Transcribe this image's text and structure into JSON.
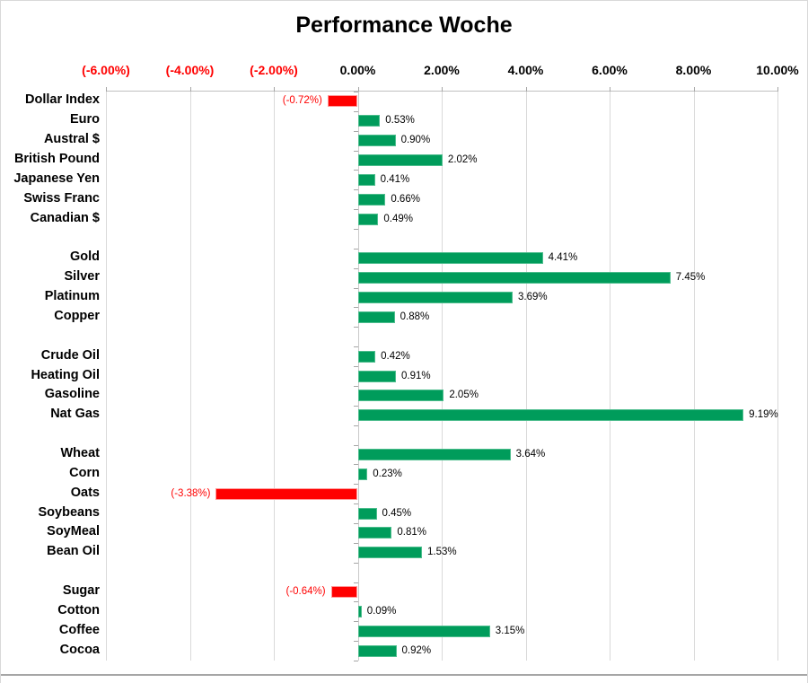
{
  "title": "Performance Woche",
  "chart_data": {
    "type": "bar",
    "orientation": "horizontal",
    "title": "Performance Woche",
    "value_labels_shown": true,
    "grid": true,
    "x_axis": {
      "min": -6,
      "max": 10,
      "step": 2,
      "unit": "%",
      "tick_labels": [
        "(-6.00%)",
        "(-4.00%)",
        "(-2.00%)",
        "0.00%",
        "2.00%",
        "4.00%",
        "6.00%",
        "8.00%",
        "10.00%"
      ],
      "tick_label_negative_indices": [
        0,
        1,
        2
      ]
    },
    "rows": [
      {
        "label": "Dollar Index",
        "value": -0.72,
        "display": "(-0.72%)"
      },
      {
        "label": "Euro",
        "value": 0.53,
        "display": "0.53%"
      },
      {
        "label": "Austral $",
        "value": 0.9,
        "display": "0.90%"
      },
      {
        "label": "British Pound",
        "value": 2.02,
        "display": "2.02%"
      },
      {
        "label": "Japanese Yen",
        "value": 0.41,
        "display": "0.41%"
      },
      {
        "label": "Swiss Franc",
        "value": 0.66,
        "display": "0.66%"
      },
      {
        "label": "Canadian $",
        "value": 0.49,
        "display": "0.49%"
      },
      {
        "label": "",
        "value": null,
        "display": ""
      },
      {
        "label": "Gold",
        "value": 4.41,
        "display": "4.41%"
      },
      {
        "label": "Silver",
        "value": 7.45,
        "display": "7.45%"
      },
      {
        "label": "Platinum",
        "value": 3.69,
        "display": "3.69%"
      },
      {
        "label": "Copper",
        "value": 0.88,
        "display": "0.88%"
      },
      {
        "label": "",
        "value": null,
        "display": ""
      },
      {
        "label": "Crude Oil",
        "value": 0.42,
        "display": "0.42%"
      },
      {
        "label": "Heating Oil",
        "value": 0.91,
        "display": "0.91%"
      },
      {
        "label": "Gasoline",
        "value": 2.05,
        "display": "2.05%"
      },
      {
        "label": "Nat Gas",
        "value": 9.19,
        "display": "9.19%"
      },
      {
        "label": "",
        "value": null,
        "display": ""
      },
      {
        "label": "Wheat",
        "value": 3.64,
        "display": "3.64%"
      },
      {
        "label": "Corn",
        "value": 0.23,
        "display": "0.23%"
      },
      {
        "label": "Oats",
        "value": -3.38,
        "display": "(-3.38%)"
      },
      {
        "label": "Soybeans",
        "value": 0.45,
        "display": "0.45%"
      },
      {
        "label": "SoyMeal",
        "value": 0.81,
        "display": "0.81%"
      },
      {
        "label": "Bean Oil",
        "value": 1.53,
        "display": "1.53%"
      },
      {
        "label": "",
        "value": null,
        "display": ""
      },
      {
        "label": "Sugar",
        "value": -0.64,
        "display": "(-0.64%)"
      },
      {
        "label": "Cotton",
        "value": 0.09,
        "display": "0.09%"
      },
      {
        "label": "Coffee",
        "value": 3.15,
        "display": "3.15%"
      },
      {
        "label": "Cocoa",
        "value": 0.92,
        "display": "0.92%"
      }
    ],
    "colors": {
      "positive_bar": "#009c5b",
      "negative_bar": "#ff0000",
      "negative_text": "#ff0000",
      "positive_text": "#000000",
      "gridline": "#d9d9d9",
      "axis_tick": "#a6a6a6"
    }
  }
}
